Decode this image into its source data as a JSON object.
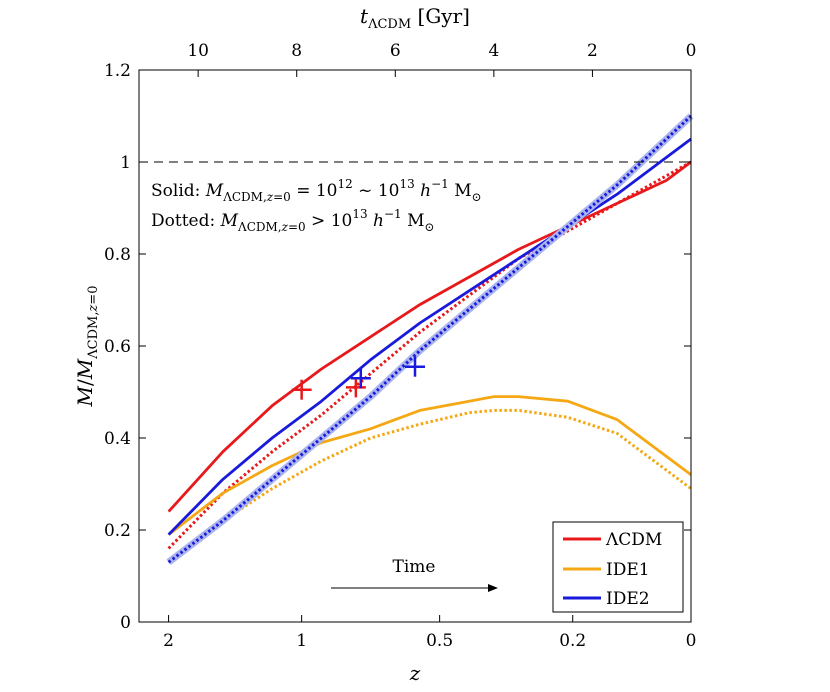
{
  "chart_data": {
    "type": "line",
    "title": "",
    "xlabel": "z",
    "ylabel": "M/M_ΛCDM,z=0",
    "top_xlabel": "t_ΛCDM [Gyr]",
    "ylim": [
      0,
      1.2
    ],
    "x_axis_note": "bottom axis is z (labels at 2, 1, 0.5, 0.2, 0); top axis is lookback time in Gyr; cosmic time increases to the right",
    "x_ticks": [
      {
        "label": "2",
        "lookback_gyr": 10.6
      },
      {
        "label": "1",
        "lookback_gyr": 7.9
      },
      {
        "label": "0.5",
        "lookback_gyr": 5.1
      },
      {
        "label": "0.2",
        "lookback_gyr": 2.4
      },
      {
        "label": "0",
        "lookback_gyr": 0
      }
    ],
    "top_ticks": [
      10,
      8,
      6,
      4,
      2,
      0
    ],
    "y_ticks": [
      "0",
      "0.2",
      "0.4",
      "0.6",
      "0.8",
      "1",
      "1.2"
    ],
    "reference_line": {
      "y": 1,
      "style": "dashed"
    },
    "annotations": {
      "solid": "Solid:  M_ΛCDM,z=0 = 10^12 ~ 10^13 h^-1 M_⊙",
      "dotted": "Dotted:  M_ΛCDM,z=0 > 10^13 h^-1 M_⊙",
      "time_arrow": "Time"
    },
    "legend": {
      "position": "bottom-right",
      "entries": [
        "ΛCDM",
        "IDE1",
        "IDE2"
      ]
    },
    "colors": {
      "LCDM": "#e8191b",
      "IDE1": "#f5a814",
      "IDE2": "#1a1adc",
      "IDE2_band": "#aab4ee"
    },
    "series": [
      {
        "name": "ΛCDM",
        "style": "solid",
        "lookback_gyr": [
          10.6,
          9.5,
          8.5,
          7.5,
          6.5,
          5.5,
          4.5,
          3.5,
          2.5,
          1.5,
          0.5,
          0
        ],
        "values": [
          0.24,
          0.37,
          0.47,
          0.55,
          0.62,
          0.69,
          0.75,
          0.81,
          0.86,
          0.91,
          0.96,
          1.0
        ]
      },
      {
        "name": "ΛCDM",
        "style": "dotted",
        "lookback_gyr": [
          10.6,
          9.5,
          8.5,
          7.5,
          6.5,
          5.5,
          4.5,
          3.5,
          2.5,
          1.5,
          0.5,
          0
        ],
        "values": [
          0.16,
          0.28,
          0.37,
          0.45,
          0.54,
          0.63,
          0.71,
          0.79,
          0.85,
          0.91,
          0.97,
          1.0
        ]
      },
      {
        "name": "IDE1",
        "style": "solid",
        "lookback_gyr": [
          10.6,
          9.5,
          8.5,
          7.5,
          6.5,
          5.5,
          4.5,
          4.0,
          3.5,
          2.5,
          1.5,
          0.5,
          0
        ],
        "values": [
          0.19,
          0.28,
          0.34,
          0.39,
          0.42,
          0.46,
          0.48,
          0.49,
          0.49,
          0.48,
          0.44,
          0.36,
          0.32
        ]
      },
      {
        "name": "IDE1",
        "style": "dotted",
        "lookback_gyr": [
          10.6,
          9.5,
          8.5,
          7.5,
          6.5,
          5.5,
          4.5,
          4.0,
          3.5,
          2.5,
          1.5,
          0.5,
          0
        ],
        "values": [
          0.13,
          0.22,
          0.29,
          0.35,
          0.4,
          0.43,
          0.455,
          0.46,
          0.46,
          0.445,
          0.41,
          0.33,
          0.29
        ]
      },
      {
        "name": "IDE2",
        "style": "solid",
        "lookback_gyr": [
          10.6,
          9.5,
          8.5,
          7.5,
          6.5,
          5.5,
          4.5,
          3.5,
          2.5,
          1.5,
          0.5,
          0
        ],
        "values": [
          0.19,
          0.31,
          0.4,
          0.48,
          0.57,
          0.65,
          0.72,
          0.79,
          0.86,
          0.93,
          1.01,
          1.05
        ]
      },
      {
        "name": "IDE2",
        "style": "dotted",
        "lookback_gyr": [
          10.6,
          9.5,
          8.5,
          7.5,
          6.5,
          5.5,
          4.5,
          3.5,
          2.5,
          1.5,
          0.5,
          0
        ],
        "values": [
          0.13,
          0.22,
          0.31,
          0.4,
          0.49,
          0.59,
          0.68,
          0.77,
          0.86,
          0.95,
          1.05,
          1.1
        ]
      }
    ],
    "markers": [
      {
        "series": "ΛCDM",
        "style": "solid",
        "lookback_gyr": 7.9,
        "value": 0.505
      },
      {
        "series": "ΛCDM",
        "style": "dotted",
        "lookback_gyr": 6.8,
        "value": 0.51
      },
      {
        "series": "IDE2",
        "style": "solid",
        "lookback_gyr": 6.7,
        "value": 0.53
      },
      {
        "series": "IDE2",
        "style": "dotted",
        "lookback_gyr": 5.6,
        "value": 0.555
      }
    ]
  }
}
